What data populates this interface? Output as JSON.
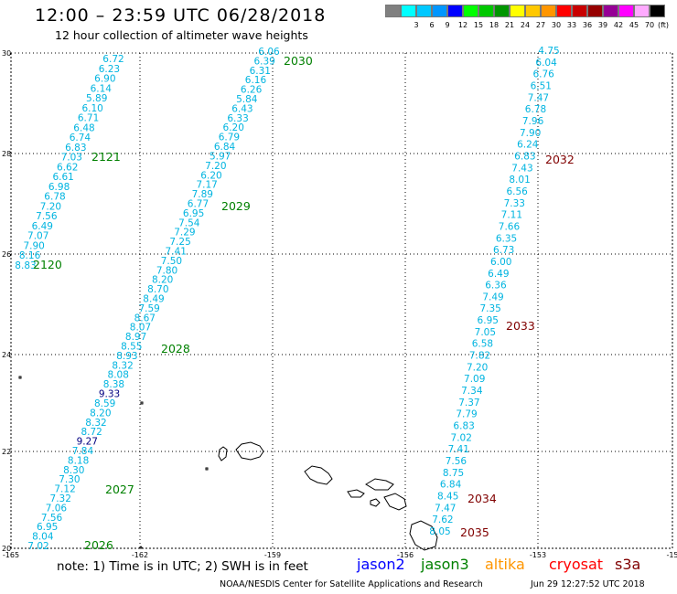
{
  "header": {
    "title": "12:00 – 23:59 UTC 06/28/2018",
    "subtitle": "12 hour collection of altimeter wave heights"
  },
  "colorbar": {
    "unit": "(ft)",
    "entries": [
      {
        "label": "",
        "color": "#808080"
      },
      {
        "label": "3",
        "color": "#00ffff"
      },
      {
        "label": "6",
        "color": "#00c8ff"
      },
      {
        "label": "9",
        "color": "#0096ff"
      },
      {
        "label": "12",
        "color": "#0000ff"
      },
      {
        "label": "15",
        "color": "#00ff00"
      },
      {
        "label": "18",
        "color": "#00c800"
      },
      {
        "label": "21",
        "color": "#009600"
      },
      {
        "label": "24",
        "color": "#ffff00"
      },
      {
        "label": "27",
        "color": "#ffc800"
      },
      {
        "label": "30",
        "color": "#ff9600"
      },
      {
        "label": "33",
        "color": "#ff0000"
      },
      {
        "label": "36",
        "color": "#c80000"
      },
      {
        "label": "39",
        "color": "#960000"
      },
      {
        "label": "42",
        "color": "#960096"
      },
      {
        "label": "45",
        "color": "#ff00ff"
      },
      {
        "label": "70",
        "color": "#ffaaff"
      },
      {
        "label": "",
        "color": "#000000"
      }
    ]
  },
  "axes": {
    "lat_labels": [
      "30",
      "28",
      "26",
      "24",
      "22",
      "20"
    ],
    "lon_labels": [
      "-165",
      "-162",
      "-159",
      "-156",
      "-153",
      "-15"
    ]
  },
  "colors": {
    "value_text": "#00b4e0",
    "value_dark": "#000080",
    "jason3_label": "#008000",
    "cryosat_label": "#800000"
  },
  "tracks": [
    {
      "id": "2121",
      "label_color": "jason3",
      "values": [
        "6.72",
        "6.23",
        "6.90",
        "6.14",
        "5.89",
        "6.10",
        "6.71",
        "6.48",
        "6.74",
        "6.83",
        "7.03",
        "6.62",
        "6.61",
        "6.98",
        "6.78",
        "7.20",
        "7.56",
        "6.49",
        "7.07",
        "7.90",
        "8.16",
        "8.83"
      ]
    },
    {
      "id": "2120",
      "label_color": "jason3",
      "values": []
    },
    {
      "id": "2030",
      "label_color": "jason3",
      "values": [
        "6.06",
        "6.39",
        "6.31",
        "6.16",
        "6.26",
        "5.84",
        "6.43",
        "6.33",
        "6.20",
        "6.79",
        "6.84",
        "5.97",
        "7.20",
        "6.20",
        "7.17",
        "7.89",
        "6.77",
        "6.95",
        "7.54",
        "7.29",
        "7.25",
        "7.41",
        "7.50",
        "7.80",
        "8.20",
        "8.70",
        "8.49",
        "7.59",
        "8.67",
        "8.07",
        "8.97",
        "8.55",
        "8.93",
        "8.32",
        "8.08",
        "8.38",
        "9.33",
        "8.59",
        "8.20",
        "8.32",
        "8.72",
        "9.27",
        "7.84",
        "8.18",
        "8.30",
        "7.30",
        "7.12",
        "7.32",
        "7.06",
        "7.56",
        "6.95",
        "8.04",
        "7.02"
      ]
    },
    {
      "id": "2032",
      "label_color": "cryosat",
      "values": [
        "4.75",
        "6.04",
        "6.76",
        "6.51",
        "7.47",
        "6.78",
        "7.96",
        "7.90",
        "6.24",
        "6.83",
        "7.43",
        "8.01",
        "6.56",
        "7.33",
        "7.11",
        "7.66",
        "6.35",
        "6.73",
        "6.00",
        "6.49",
        "6.36",
        "7.49",
        "7.35",
        "6.95",
        "7.05",
        "6.58",
        "7.82",
        "7.20",
        "7.09",
        "7.34",
        "7.37",
        "7.79",
        "6.83",
        "7.02",
        "7.41",
        "7.56",
        "8.75",
        "6.84",
        "8.45",
        "7.47",
        "7.62",
        "8.05"
      ]
    }
  ],
  "track_labels": [
    "2030",
    "2121",
    "2029",
    "2120",
    "2028",
    "2027",
    "2026",
    "2032",
    "2033",
    "2034",
    "2035"
  ],
  "footer": {
    "note": "note:  1) Time is in UTC;  2) SWH is in feet",
    "legend": [
      {
        "label": "jason2",
        "color": "#0000ff"
      },
      {
        "label": "jason3",
        "color": "#008000"
      },
      {
        "label": "altika",
        "color": "#ff9600"
      },
      {
        "label": "cryosat",
        "color": "#ff0000"
      },
      {
        "label": "s3a",
        "color": "#800000"
      }
    ],
    "credit": "NOAA/NESDIS Center for Satellite Applications and Research",
    "timestamp": "Jun 29 12:27:52 UTC 2018"
  }
}
